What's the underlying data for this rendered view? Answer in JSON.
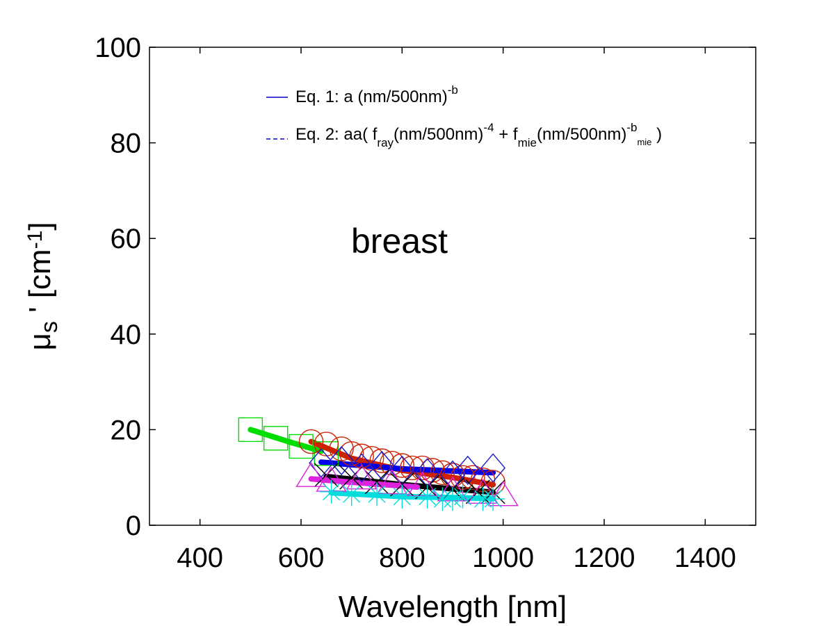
{
  "chart_data": {
    "type": "scatter",
    "title": "",
    "xlabel": "Wavelength [nm]",
    "ylabel": {
      "main": "μ",
      "sub": "s",
      "prime": " ' [cm",
      "sup": "-1",
      "close": "]"
    },
    "xlim": [
      300,
      1500
    ],
    "ylim": [
      0,
      100
    ],
    "xticks": [
      400,
      600,
      800,
      1000,
      1200,
      1400
    ],
    "yticks": [
      0,
      20,
      40,
      60,
      80,
      100
    ],
    "grid": false,
    "legend_position": "top",
    "legend": [
      {
        "style": "solid",
        "color": "#0000cc",
        "parts": [
          {
            "t": "Eq. 1: a (nm/500nm)"
          },
          {
            "t": "-b",
            "sup": true
          }
        ]
      },
      {
        "style": "dashed",
        "color": "#0000cc",
        "parts": [
          {
            "t": "Eq. 2: aa( f"
          },
          {
            "t": "ray",
            "sub": true
          },
          {
            "t": "(nm/500nm)"
          },
          {
            "t": "-4",
            "sup": true
          },
          {
            "t": " + f"
          },
          {
            "t": "mie",
            "sub": true
          },
          {
            "t": "(nm/500nm)"
          },
          {
            "t": "-b",
            "sup": true
          },
          {
            "t": "mie",
            "subsup": true
          },
          {
            "t": " )"
          }
        ]
      }
    ],
    "annotation": "breast",
    "series": [
      {
        "color": "#00dd00",
        "marker": "square",
        "x": [
          500,
          550,
          600,
          650
        ],
        "y": [
          20.0,
          18.2,
          16.5,
          15.0
        ],
        "fit_x": [
          500,
          575,
          640
        ],
        "fit_y": [
          20.0,
          17.5,
          15.5
        ]
      },
      {
        "color": "#cc2200",
        "marker": "circle",
        "x": [
          620,
          650,
          680,
          700,
          720,
          740,
          760,
          780,
          800,
          820,
          840,
          860,
          880,
          900,
          920,
          940,
          960,
          980
        ],
        "y": [
          17.5,
          17.0,
          16.0,
          15.0,
          14.5,
          14.0,
          13.5,
          13.0,
          12.5,
          12.0,
          12.0,
          11.5,
          11.0,
          10.5,
          10.0,
          10.0,
          9.5,
          9.0
        ],
        "fit_x": [
          620,
          700,
          800,
          900,
          980
        ],
        "fit_y": [
          17.5,
          14.0,
          11.5,
          10.0,
          8.5
        ]
      },
      {
        "color": "#1a1acc",
        "fit_color": "#0000ee",
        "marker": "diamond",
        "x": [
          640,
          680,
          720,
          760,
          800,
          850,
          900,
          930,
          980
        ],
        "y": [
          13.0,
          13.5,
          12.0,
          12.5,
          11.5,
          11.0,
          10.5,
          11.5,
          12.0
        ],
        "fit_x": [
          640,
          800,
          980
        ],
        "fit_y": [
          13.2,
          11.8,
          11.0
        ]
      },
      {
        "color": "#000000",
        "marker": "x",
        "x": [
          650,
          700,
          750,
          800,
          850,
          900,
          950,
          980
        ],
        "y": [
          10.5,
          10.0,
          9.0,
          8.5,
          8.0,
          7.5,
          7.0,
          7.0
        ],
        "fit_x": [
          650,
          800,
          980
        ],
        "fit_y": [
          10.2,
          8.5,
          6.9
        ]
      },
      {
        "color": "#dd22dd",
        "marker": "triangle",
        "x": [
          620,
          660,
          720,
          780,
          840,
          900,
          960,
          1000
        ],
        "y": [
          10.0,
          9.0,
          9.5,
          8.5,
          8.0,
          7.0,
          6.5,
          6.0
        ],
        "fit_x": [
          620,
          700,
          830
        ],
        "fit_y": [
          9.7,
          9.0,
          8.0
        ]
      },
      {
        "color": "#00dddd",
        "marker": "star",
        "x": [
          660,
          700,
          750,
          800,
          850,
          880,
          900,
          920,
          960,
          980
        ],
        "y": [
          7.0,
          6.5,
          6.5,
          6.0,
          6.0,
          5.5,
          5.5,
          6.0,
          5.5,
          5.5
        ],
        "fit_x": [
          660,
          800,
          980
        ],
        "fit_y": [
          6.8,
          6.0,
          5.6
        ]
      }
    ]
  }
}
